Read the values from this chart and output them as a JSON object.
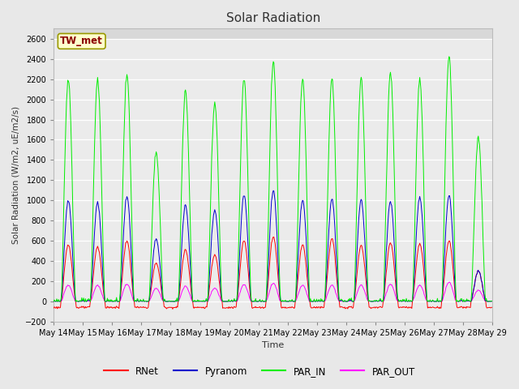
{
  "title": "Solar Radiation",
  "ylabel": "Solar Radiation (W/m2, uE/m2/s)",
  "xlabel": "Time",
  "ylim": [
    -200,
    2700
  ],
  "yticks": [
    -200,
    0,
    200,
    400,
    600,
    800,
    1000,
    1200,
    1400,
    1600,
    1800,
    2000,
    2200,
    2400,
    2600
  ],
  "outer_bg": "#e8e8e8",
  "plot_bg": "#ebebeb",
  "upper_bg": "#d8d8d8",
  "grid_color": "#ffffff",
  "colors": {
    "RNet": "#ff0000",
    "Pyranom": "#0000cc",
    "PAR_IN": "#00ee00",
    "PAR_OUT": "#ff00ff"
  },
  "legend_label": "TW_met",
  "n_days": 15,
  "start_day": 14
}
